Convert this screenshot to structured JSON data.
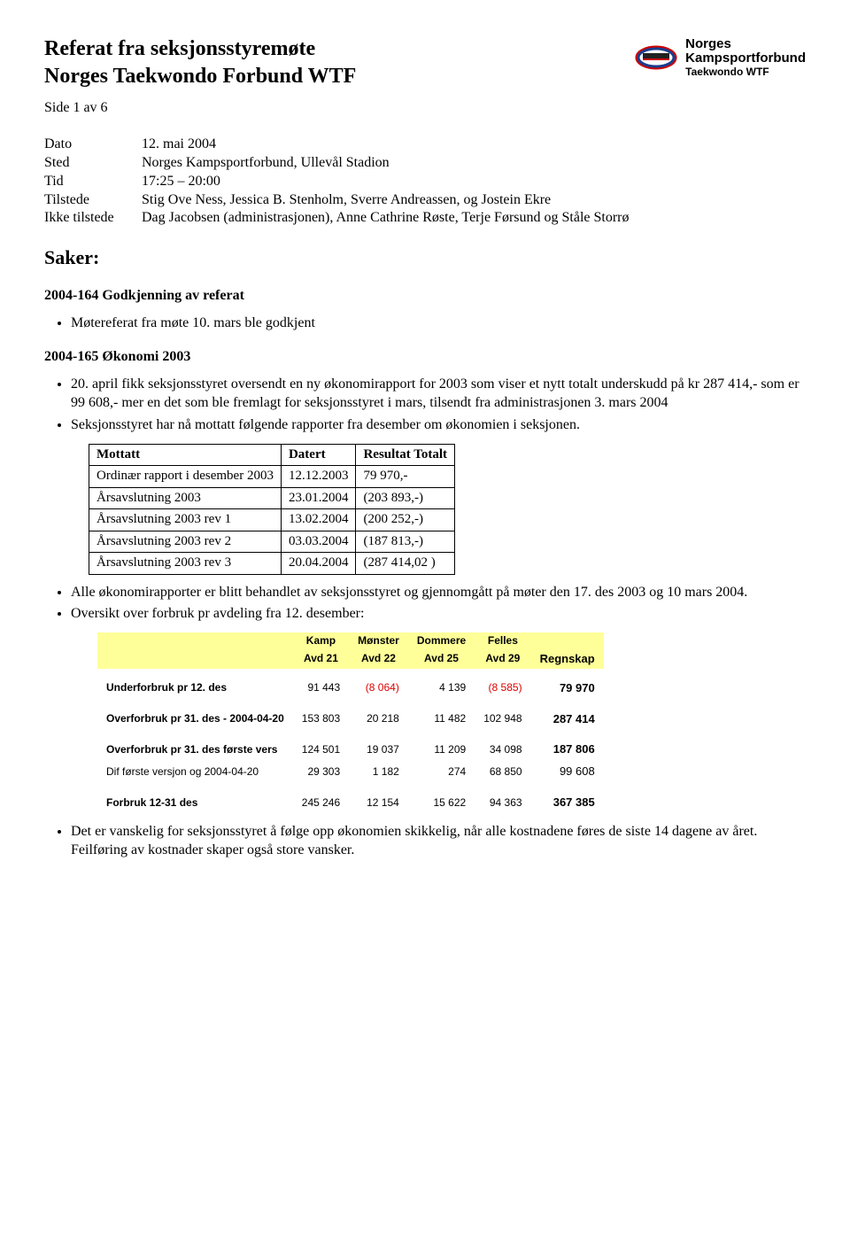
{
  "header": {
    "title1": "Referat fra seksjonsstyremøte",
    "title2": "Norges Taekwondo Forbund WTF",
    "page": "Side    1 av 6",
    "logo": {
      "line1": "Norges",
      "line2": "Kampsportforbund",
      "line3": "Taekwondo WTF"
    }
  },
  "meta": {
    "dato_label": "Dato",
    "dato": "12. mai 2004",
    "sted_label": "Sted",
    "sted": "Norges Kampsportforbund, Ullevål Stadion",
    "tid_label": "Tid",
    "tid": "17:25 – 20:00",
    "tilstede_label": "Tilstede",
    "tilstede": "Stig Ove Ness, Jessica B. Stenholm, Sverre Andreassen, og Jostein Ekre",
    "ikke_label": "Ikke tilstede",
    "ikke": "Dag Jacobsen (administrasjonen), Anne Cathrine Røste, Terje Førsund og Ståle Storrø"
  },
  "saker_heading": "Saker:",
  "s164": {
    "heading": "2004-164    Godkjenning av referat",
    "bullet": "Møtereferat fra møte 10. mars ble godkjent"
  },
  "s165": {
    "heading": "2004-165    Økonomi 2003",
    "bullet1": "20. april fikk seksjonsstyret oversendt en ny økonomirapport for 2003 som viser et nytt totalt underskudd på kr 287 414,- som er 99 608,- mer en det som ble fremlagt for seksjonsstyret i mars, tilsendt fra administrasjonen 3. mars 2004",
    "bullet2": "Seksjonsstyret har nå mottatt følgende rapporter fra desember om økonomien i seksjonen.",
    "table": {
      "head": [
        "Mottatt",
        "Datert",
        "Resultat Totalt"
      ],
      "rows": [
        [
          "Ordinær rapport i desember 2003",
          "12.12.2003",
          "79 970,-"
        ],
        [
          "Årsavslutning 2003",
          "23.01.2004",
          "(203 893,-)"
        ],
        [
          "Årsavslutning 2003 rev 1",
          "13.02.2004",
          "(200 252,-)"
        ],
        [
          "Årsavslutning 2003 rev 2",
          "03.03.2004",
          "(187 813,-)"
        ],
        [
          "Årsavslutning 2003 rev 3",
          "20.04.2004",
          "(287 414,02 )"
        ]
      ]
    },
    "bullet3": "Alle økonomirapporter er blitt behandlet av seksjonsstyret og gjennomgått på møter den 17. des 2003 og 10 mars 2004.",
    "bullet4": "Oversikt over forbruk pr avdeling fra 12. desember:",
    "budget": {
      "hdr1": [
        "",
        "Kamp",
        "Mønster",
        "Dommere",
        "Felles",
        ""
      ],
      "hdr2": [
        "",
        "Avd 21",
        "Avd 22",
        "Avd 25",
        "Avd 29",
        "Regnskap"
      ],
      "rows": [
        {
          "label": "Underforbruk pr 12. des",
          "vals": [
            "91 443",
            "(8 064)",
            "4 139",
            "(8 585)",
            "79 970"
          ],
          "neg": [
            false,
            true,
            false,
            true,
            false
          ]
        },
        {
          "label": "Overforbruk pr 31. des - 2004-04-20",
          "vals": [
            "153 803",
            "20 218",
            "11 482",
            "102 948",
            "287 414"
          ],
          "neg": [
            false,
            false,
            false,
            false,
            false
          ]
        },
        {
          "label": "Overforbruk pr 31. des første vers",
          "vals": [
            "124 501",
            "19 037",
            "11 209",
            "34 098",
            "187 806"
          ],
          "neg": [
            false,
            false,
            false,
            false,
            false
          ]
        },
        {
          "label": "Dif første versjon og 2004-04-20",
          "vals": [
            "29 303",
            "1 182",
            "274",
            "68 850",
            "99 608"
          ],
          "neg": [
            false,
            false,
            false,
            false,
            false
          ],
          "light": true
        },
        {
          "label": "Forbruk 12-31 des",
          "vals": [
            "245 246",
            "12 154",
            "15 622",
            "94 363",
            "367 385"
          ],
          "neg": [
            false,
            false,
            false,
            false,
            false
          ]
        }
      ]
    },
    "bullet5": "Det er vanskelig for seksjonsstyret å følge opp økonomien skikkelig, når alle kostnadene føres de siste 14 dagene av året. Feilføring av kostnader skaper også store vansker."
  }
}
